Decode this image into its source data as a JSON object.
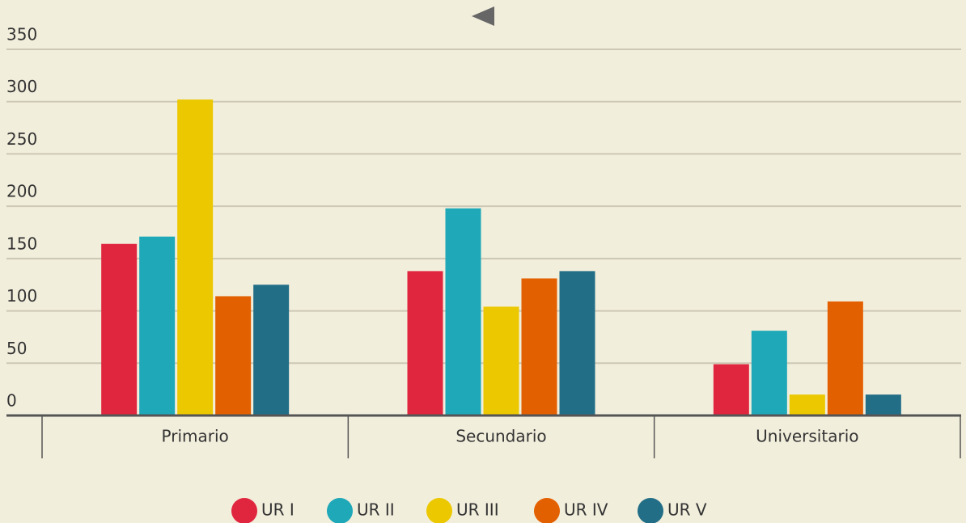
{
  "chart_data": {
    "type": "bar",
    "categories": [
      "Primario",
      "Secundario",
      "Universitario"
    ],
    "series": [
      {
        "name": "UR I",
        "color": "#e0263f",
        "values": [
          164,
          138,
          49
        ]
      },
      {
        "name": "UR II",
        "color": "#1fa8b8",
        "values": [
          171,
          198,
          81
        ]
      },
      {
        "name": "UR III",
        "color": "#ecc800",
        "values": [
          302,
          104,
          20
        ]
      },
      {
        "name": "UR IV",
        "color": "#e36000",
        "values": [
          114,
          131,
          109
        ]
      },
      {
        "name": "UR V",
        "color": "#226e87",
        "values": [
          125,
          138,
          20
        ]
      }
    ],
    "ylim": [
      0,
      350
    ],
    "yticks": [
      0,
      50,
      100,
      150,
      200,
      250,
      300,
      350
    ],
    "grid": true,
    "legend": "bottom"
  }
}
